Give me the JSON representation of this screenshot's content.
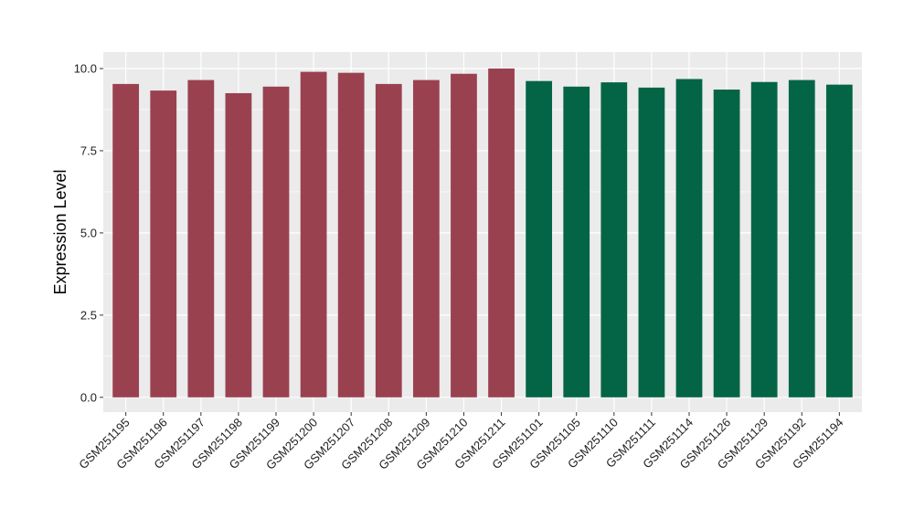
{
  "chart_data": {
    "type": "bar",
    "title": "",
    "xlabel": "",
    "ylabel": "Expression Level",
    "ylim": [
      -0.45,
      10.5
    ],
    "yticks": [
      0.0,
      2.5,
      5.0,
      7.5,
      10.0
    ],
    "ytick_labels": [
      "0.0",
      "2.5",
      "5.0",
      "7.5",
      "10.0"
    ],
    "grid": true,
    "legend": "none",
    "colors": {
      "group_1": "#9a4150",
      "group_2": "#036546",
      "panel_bg": "#ebebeb",
      "grid": "#ffffff"
    },
    "categories": [
      "GSM251195",
      "GSM251196",
      "GSM251197",
      "GSM251198",
      "GSM251199",
      "GSM251200",
      "GSM251207",
      "GSM251208",
      "GSM251209",
      "GSM251210",
      "GSM251211",
      "GSM251101",
      "GSM251105",
      "GSM251110",
      "GSM251111",
      "GSM251114",
      "GSM251126",
      "GSM251129",
      "GSM251192",
      "GSM251194"
    ],
    "values": [
      9.53,
      9.33,
      9.65,
      9.25,
      9.45,
      9.9,
      9.87,
      9.53,
      9.65,
      9.84,
      10.0,
      9.62,
      9.45,
      9.58,
      9.42,
      9.68,
      9.36,
      9.59,
      9.65,
      9.51
    ],
    "groups": [
      1,
      1,
      1,
      1,
      1,
      1,
      1,
      1,
      1,
      1,
      1,
      2,
      2,
      2,
      2,
      2,
      2,
      2,
      2,
      2
    ]
  }
}
